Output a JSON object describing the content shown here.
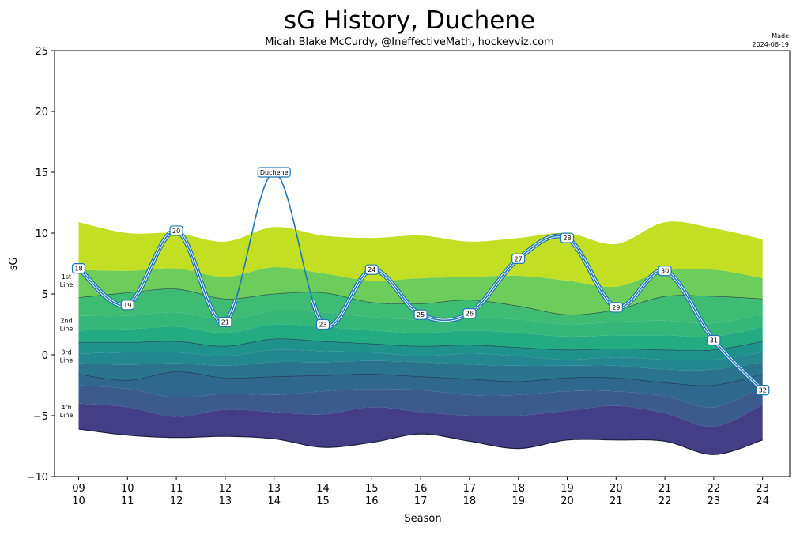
{
  "chart_data": {
    "type": "area",
    "title": "sG History, Duchene",
    "subtitle": "Micah Blake McCurdy, @IneffectiveMath, hockeyviz.com",
    "made_note": [
      "Made",
      "2024-06-19"
    ],
    "xlabel": "Season",
    "ylabel": "sG",
    "ylim": [
      -10,
      25
    ],
    "yticks": [
      -10,
      -5,
      0,
      5,
      10,
      15,
      20,
      25
    ],
    "grid": false,
    "categories": [
      "09 10",
      "10 11",
      "11 12",
      "12 13",
      "13 14",
      "14 15",
      "15 16",
      "16 17",
      "17 18",
      "18 19",
      "19 20",
      "20 21",
      "21 22",
      "22 23",
      "23 24"
    ],
    "x_tick_labels": [
      [
        "09",
        "10"
      ],
      [
        "10",
        "11"
      ],
      [
        "11",
        "12"
      ],
      [
        "12",
        "13"
      ],
      [
        "13",
        "14"
      ],
      [
        "14",
        "15"
      ],
      [
        "15",
        "16"
      ],
      [
        "16",
        "17"
      ],
      [
        "17",
        "18"
      ],
      [
        "18",
        "19"
      ],
      [
        "19",
        "20"
      ],
      [
        "20",
        "21"
      ],
      [
        "21",
        "22"
      ],
      [
        "22",
        "23"
      ],
      [
        "23",
        "24"
      ]
    ],
    "band_labels": [
      {
        "lines": [
          "1st",
          "Line"
        ],
        "y": 6.1
      },
      {
        "lines": [
          "2nd",
          "Line"
        ],
        "y": 2.5
      },
      {
        "lines": [
          "3rd",
          "Line"
        ],
        "y": -0.1
      },
      {
        "lines": [
          "4th",
          "Line"
        ],
        "y": -4.6
      }
    ],
    "bands": {
      "boundaries": [
        [
          -6.1,
          -6.6,
          -6.8,
          -6.7,
          -6.9,
          -7.6,
          -7.2,
          -6.5,
          -7.1,
          -7.7,
          -7.0,
          -7.0,
          -7.1,
          -8.2,
          -7.0
        ],
        [
          -4.0,
          -4.3,
          -5.1,
          -4.5,
          -4.7,
          -4.9,
          -4.3,
          -4.7,
          -5.0,
          -5.0,
          -4.6,
          -4.2,
          -4.8,
          -5.9,
          -4.1
        ],
        [
          -2.5,
          -2.8,
          -3.5,
          -3.2,
          -3.3,
          -3.0,
          -2.8,
          -2.9,
          -3.3,
          -3.3,
          -3.0,
          -3.0,
          -3.4,
          -4.3,
          -2.6
        ],
        [
          -1.6,
          -2.1,
          -1.4,
          -1.9,
          -1.8,
          -1.7,
          -1.6,
          -1.8,
          -2.0,
          -2.2,
          -1.9,
          -1.9,
          -2.3,
          -2.5,
          -1.6
        ],
        [
          -0.7,
          -0.8,
          -0.7,
          -0.9,
          -0.6,
          -0.6,
          -0.5,
          -0.6,
          -0.8,
          -0.9,
          -0.9,
          -0.9,
          -1.2,
          -1.2,
          -0.6
        ],
        [
          0.1,
          0.2,
          0.2,
          -0.1,
          0.4,
          0.3,
          0.2,
          -0.1,
          0.1,
          -0.1,
          -0.4,
          -0.2,
          -0.4,
          -0.4,
          0.2
        ],
        [
          1.0,
          1.0,
          1.1,
          0.7,
          1.3,
          1.1,
          0.9,
          0.7,
          0.8,
          0.6,
          0.4,
          0.5,
          0.4,
          0.4,
          1.1
        ],
        [
          2.0,
          2.1,
          2.3,
          1.8,
          2.5,
          2.3,
          2.0,
          1.8,
          2.0,
          1.8,
          1.5,
          1.6,
          1.6,
          1.5,
          2.3
        ],
        [
          3.2,
          3.2,
          3.5,
          2.9,
          3.6,
          3.5,
          3.1,
          2.9,
          3.1,
          2.9,
          2.5,
          2.7,
          2.8,
          2.6,
          3.4
        ],
        [
          4.7,
          5.1,
          5.4,
          4.6,
          5.0,
          5.1,
          4.3,
          4.2,
          4.5,
          4.0,
          3.3,
          3.7,
          4.8,
          4.8,
          4.6
        ],
        [
          7.0,
          6.9,
          7.1,
          6.4,
          7.2,
          6.7,
          6.1,
          6.3,
          6.4,
          6.5,
          6.1,
          5.6,
          6.9,
          7.0,
          6.3
        ],
        [
          10.9,
          10.0,
          10.0,
          9.3,
          10.5,
          9.8,
          9.6,
          9.8,
          9.3,
          9.6,
          10.0,
          9.1,
          10.9,
          10.4,
          9.5
        ]
      ],
      "colors": [
        "#433e85",
        "#3a5b8c",
        "#30678d",
        "#2b748e",
        "#24868e",
        "#20928c",
        "#25ab82",
        "#35b779",
        "#3fbc73",
        "#6ccd5a",
        "#c2df23"
      ],
      "edge_color": "#1a1f3c"
    },
    "series": [
      {
        "name": "Duchene",
        "color": "#1f77b4",
        "values": [
          7.1,
          4.1,
          10.2,
          2.7,
          15.0,
          2.5,
          7.0,
          3.3,
          3.4,
          7.9,
          9.6,
          3.9,
          6.9,
          1.2,
          -2.9
        ],
        "point_labels": [
          "18",
          "19",
          "20",
          "21",
          "Duchene",
          "23",
          "24",
          "25",
          "26",
          "27",
          "28",
          "29",
          "30",
          "31",
          "32"
        ]
      }
    ]
  }
}
